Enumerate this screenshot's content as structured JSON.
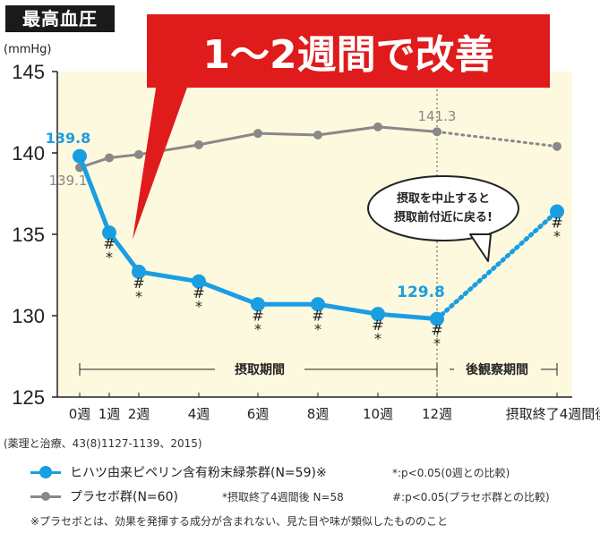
{
  "title": "最高血圧",
  "unit": "(mmHg)",
  "banner": "1～2週間で改善",
  "callout": [
    "摂取を中止すると",
    "摂取前付近に戻る!"
  ],
  "period_labels": {
    "intake": "摂取期間",
    "observation": "後観察期間"
  },
  "source": "(薬理と治療、43(8)1127-1139、2015)",
  "legend": {
    "series1": "ヒハツ由来ピペリン含有粉末緑茶群(N=59)※",
    "series2": "プラセボ群(N=60)",
    "series2_extra": "*摂取終了4週間後 N=58"
  },
  "notes": {
    "star": "*:p<0.05(0週との比較)",
    "hash": "#:p<0.05(プラセボ群との比較)"
  },
  "footnote": "※プラセボとは、効果を発揮する成分が含まれない、見た目や味が類似したもののこと",
  "colors": {
    "series1": "#1a9ee2",
    "series2": "#888888",
    "background": "#fdf9de",
    "banner": "#e01b1b"
  },
  "chart_data": {
    "type": "line",
    "title": "最高血圧",
    "ylabel": "(mmHg)",
    "xlabel": "",
    "categories": [
      "0週",
      "1週",
      "2週",
      "4週",
      "6週",
      "8週",
      "10週",
      "12週",
      "摂取終了4週間後"
    ],
    "ylim": [
      125,
      145
    ],
    "yticks": [
      125,
      130,
      135,
      140,
      145
    ],
    "series": [
      {
        "name": "ヒハツ由来ピペリン含有粉末緑茶群(N=59)※",
        "values": [
          139.8,
          135.1,
          132.7,
          132.1,
          130.7,
          130.7,
          130.1,
          129.8,
          136.4
        ],
        "marks": [
          "",
          "#\n*",
          "#\n*",
          "#\n*",
          "#\n*",
          "#\n*",
          "#\n*",
          "#\n*",
          "#\n*"
        ],
        "data_labels": {
          "0": "139.8",
          "7": "129.8"
        }
      },
      {
        "name": "プラセボ群(N=60)",
        "values": [
          139.1,
          139.7,
          139.9,
          140.5,
          141.2,
          141.1,
          141.6,
          141.3,
          140.4
        ],
        "data_labels": {
          "0": "139.1",
          "7": "141.3"
        }
      }
    ],
    "grid": false,
    "background_highlight": "intake period (0週–12週)"
  }
}
